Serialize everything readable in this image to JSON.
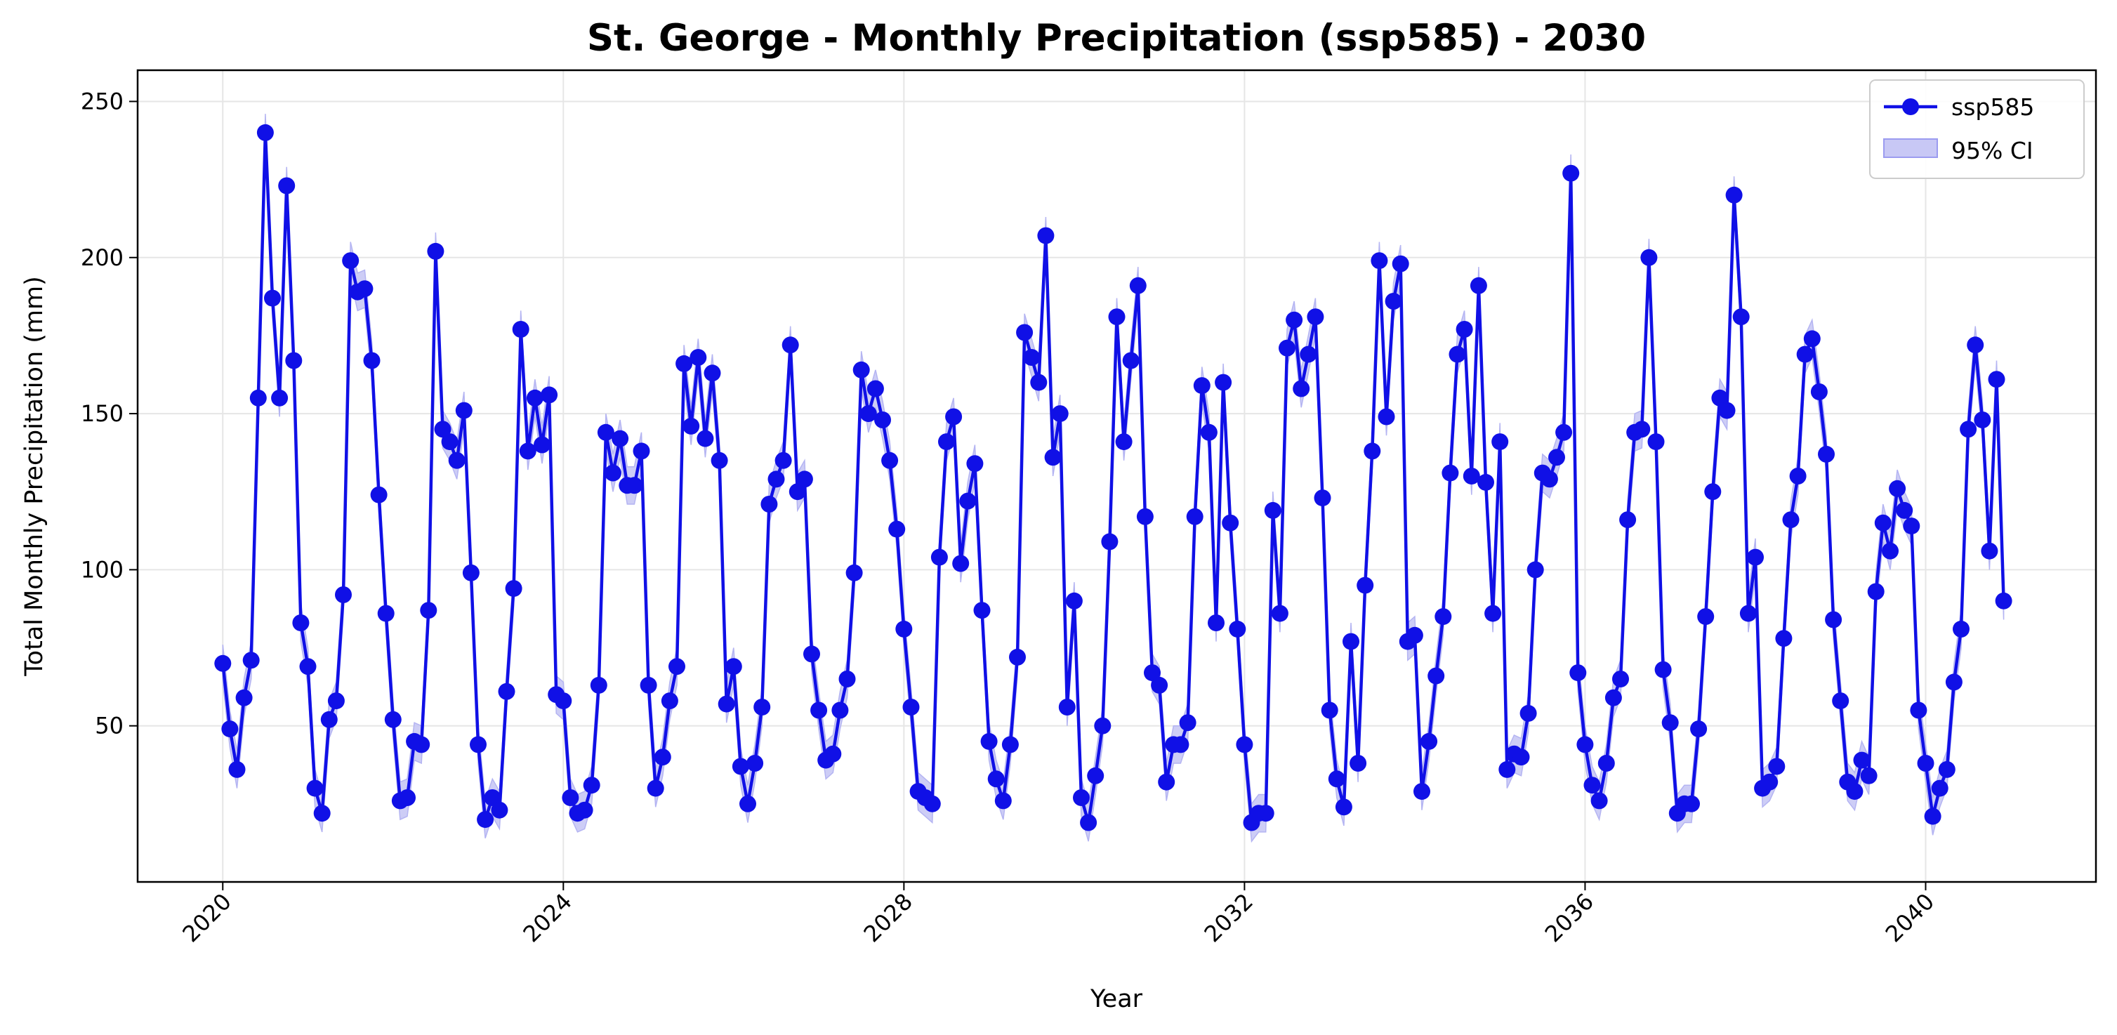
{
  "chart_data": {
    "type": "line",
    "title": "St. George - Monthly Precipitation (ssp585) - 2030",
    "xlabel": "Year",
    "ylabel": "Total Monthly Precipitation (mm)",
    "x_ticks": [
      "2020",
      "2024",
      "2028",
      "2032",
      "2036",
      "2040"
    ],
    "y_ticks": [
      "50",
      "100",
      "150",
      "200",
      "250"
    ],
    "xlim": [
      2019.0,
      2042.0
    ],
    "ylim": [
      0,
      260
    ],
    "grid": true,
    "legend_position": "top-right",
    "legend": [
      {
        "label": "ssp585",
        "kind": "line-marker"
      },
      {
        "label": "95% CI",
        "kind": "band"
      }
    ],
    "colors": {
      "line": "#1010e6",
      "band": "#c8c8f5",
      "band_edge": "#9b9bf0"
    },
    "x_start": "2020-01",
    "x_end": "2041-01",
    "series": [
      {
        "name": "ssp585",
        "values": [
          70,
          49,
          36,
          59,
          71,
          155,
          240,
          187,
          155,
          223,
          167,
          83,
          69,
          30,
          22,
          52,
          58,
          92,
          199,
          189,
          190,
          167,
          124,
          86,
          52,
          26,
          27,
          45,
          44,
          87,
          202,
          145,
          141,
          135,
          151,
          99,
          44,
          20,
          27,
          23,
          61,
          94,
          177,
          138,
          155,
          140,
          156,
          60,
          58,
          27,
          22,
          23,
          31,
          63,
          144,
          131,
          142,
          127,
          127,
          138,
          63,
          30,
          40,
          58,
          69,
          166,
          146,
          168,
          142,
          163,
          135,
          57,
          69,
          37,
          25,
          38,
          56,
          121,
          129,
          135,
          172,
          125,
          129,
          73,
          55,
          39,
          41,
          55,
          65,
          99,
          164,
          150,
          158,
          148,
          135,
          113,
          81,
          56,
          29,
          27,
          25,
          104,
          141,
          149,
          102,
          122,
          134,
          87,
          45,
          33,
          26,
          44,
          72,
          176,
          168,
          160,
          207,
          136,
          150,
          56,
          90,
          27,
          19,
          34,
          50,
          109,
          181,
          141,
          167,
          191,
          117,
          67,
          63,
          32,
          44,
          44,
          51,
          117,
          159,
          144,
          83,
          160,
          115,
          81,
          44,
          19,
          22,
          22,
          119,
          86,
          171,
          180,
          158,
          169,
          181,
          123,
          55,
          33,
          24,
          77,
          38,
          95,
          138,
          199,
          149,
          186,
          198,
          77,
          79,
          29,
          45,
          66,
          85,
          131,
          169,
          177,
          130,
          191,
          128,
          86,
          141,
          36,
          41,
          40,
          54,
          100,
          131,
          129,
          136,
          144,
          227,
          67,
          44,
          31,
          26,
          38,
          59,
          65,
          116,
          144,
          145,
          200,
          141,
          68,
          51,
          22,
          25,
          25,
          49,
          85,
          125,
          155,
          151,
          220,
          181,
          86,
          104,
          30,
          32,
          37,
          78,
          116,
          130,
          169,
          174,
          157,
          137,
          84,
          58,
          32,
          29,
          39,
          34,
          93,
          115,
          106,
          126,
          119,
          114,
          55,
          38,
          21,
          30,
          36,
          64,
          81,
          145,
          172,
          148,
          106,
          161,
          90
        ]
      }
    ],
    "ci_halfwidth": 6
  }
}
